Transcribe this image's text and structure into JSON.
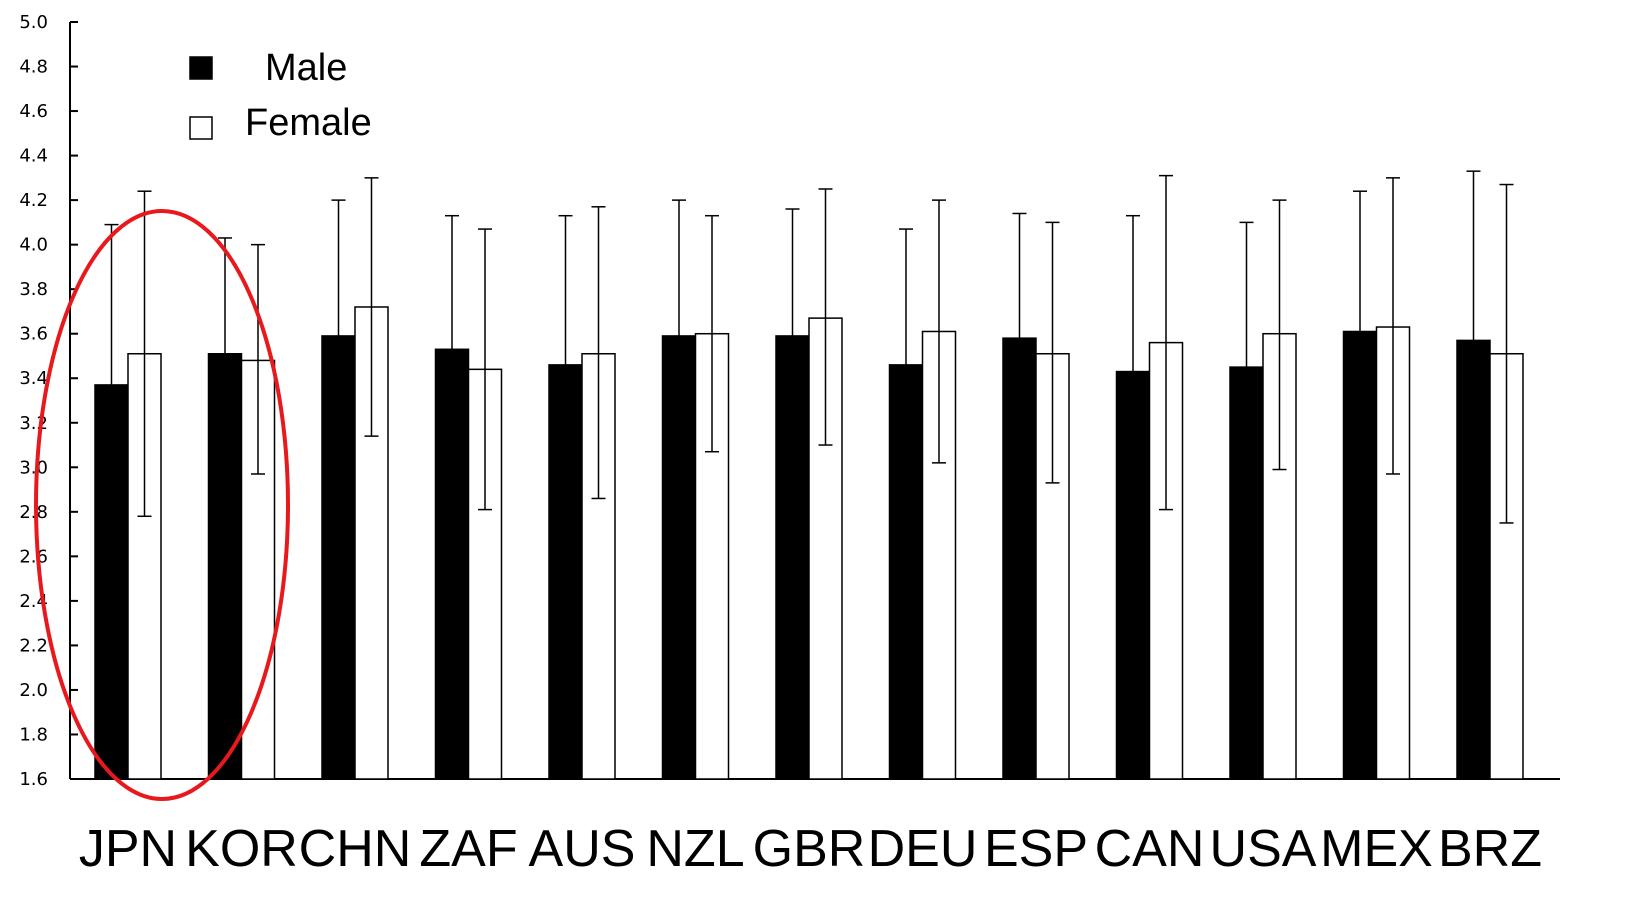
{
  "chart_data": {
    "type": "bar",
    "title": "",
    "xlabel": "",
    "ylabel": "",
    "ylim": [
      1.6,
      5.0
    ],
    "yticks": [
      "1.6",
      "1.8",
      "2.0",
      "2.2",
      "2.4",
      "2.6",
      "2.8",
      "3.0",
      "3.2",
      "3.4",
      "3.6",
      "3.8",
      "4.0",
      "4.2",
      "4.4",
      "4.6",
      "4.8",
      "5.0"
    ],
    "categories": [
      "JPN",
      "KOR",
      "CHN",
      "ZAF",
      "AUS",
      "NZL",
      "GBR",
      "DEU",
      "ESP",
      "CAN",
      "USA",
      "MEX",
      "BRZ"
    ],
    "series": [
      {
        "name": "Male",
        "fill": "#000000",
        "values": [
          3.37,
          3.51,
          3.59,
          3.53,
          3.46,
          3.59,
          3.59,
          3.46,
          3.58,
          3.43,
          3.45,
          3.61,
          3.57
        ],
        "error_upper": [
          4.09,
          4.03,
          4.2,
          4.13,
          4.13,
          4.2,
          4.16,
          4.07,
          4.14,
          4.13,
          4.1,
          4.24,
          4.33
        ]
      },
      {
        "name": "Female",
        "fill": "#ffffff",
        "values": [
          3.51,
          3.48,
          3.72,
          3.44,
          3.51,
          3.6,
          3.67,
          3.61,
          3.51,
          3.56,
          3.6,
          3.63,
          3.51
        ],
        "error_upper": [
          4.24,
          4.0,
          4.3,
          4.07,
          4.17,
          4.13,
          4.25,
          4.2,
          4.1,
          4.31,
          4.2,
          4.3,
          4.27
        ],
        "error_lower": [
          2.78,
          2.97,
          3.14,
          2.81,
          2.86,
          3.07,
          3.1,
          3.02,
          2.93,
          2.81,
          2.99,
          2.97,
          2.75
        ]
      }
    ],
    "legend_position": "top-left",
    "grid": false,
    "highlight": {
      "shape": "ellipse",
      "color": "#e8191c",
      "categories": [
        "JPN",
        "KOR"
      ]
    }
  }
}
